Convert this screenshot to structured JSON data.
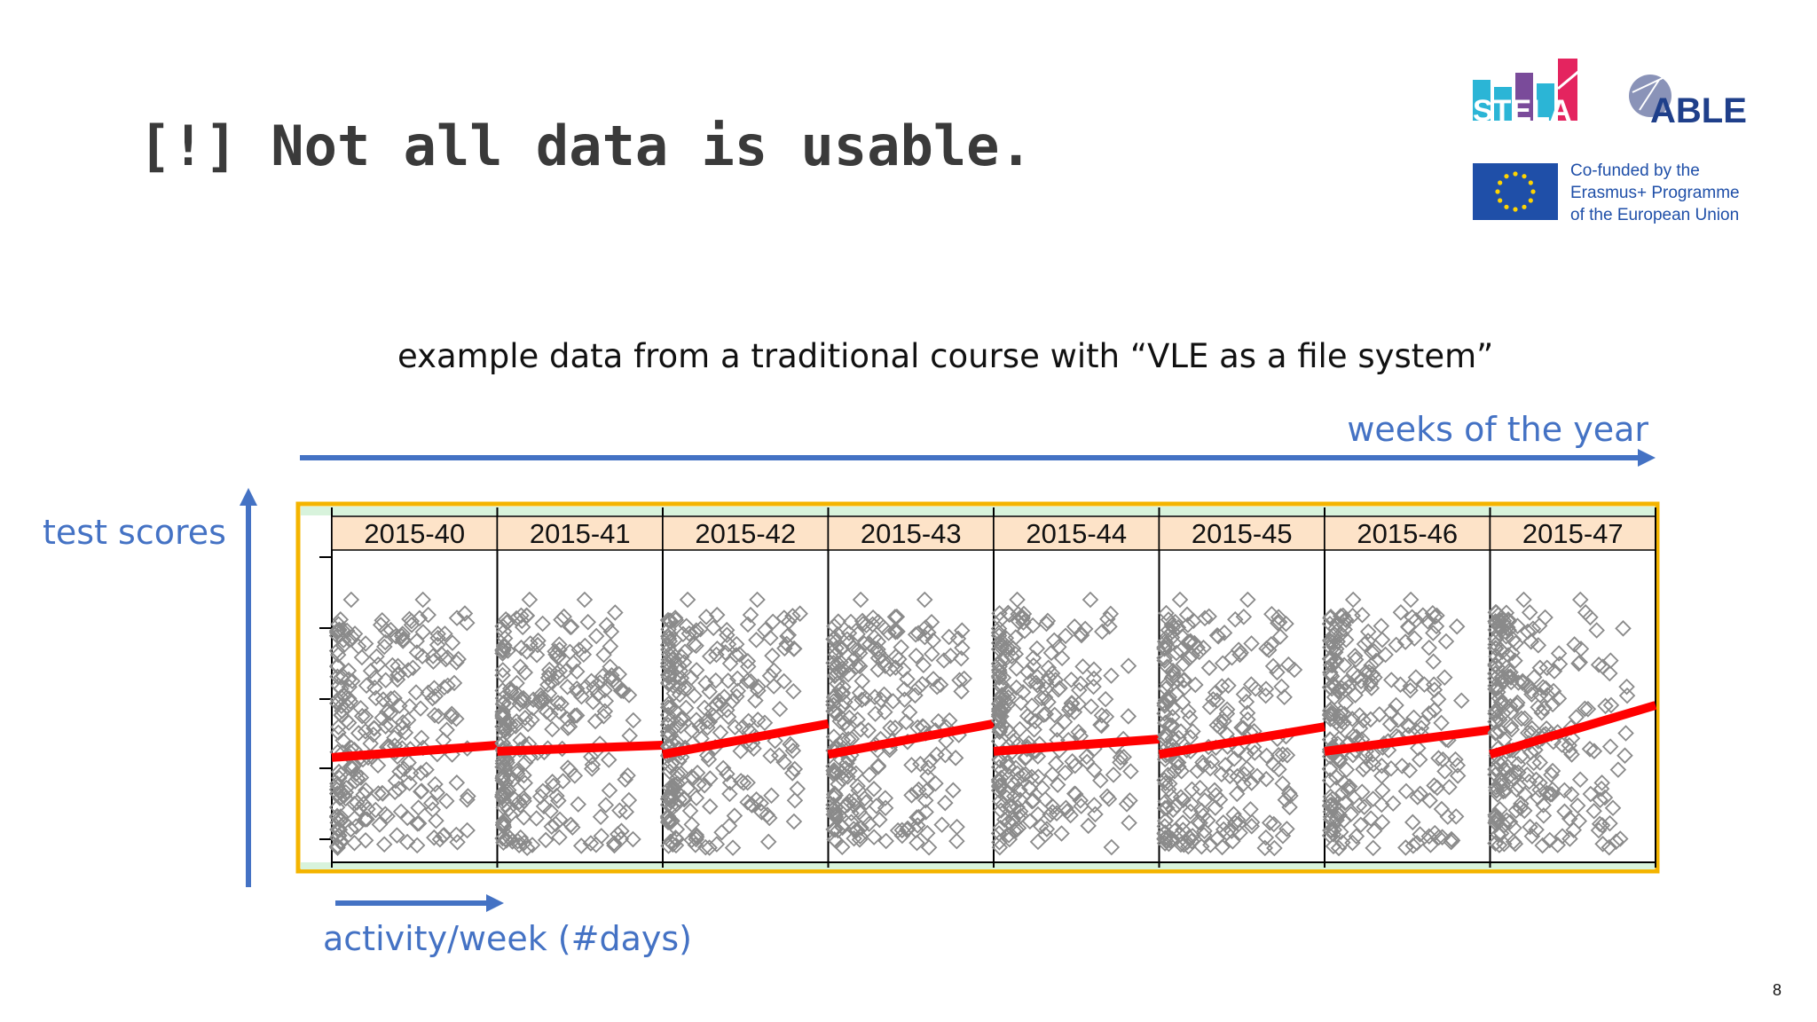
{
  "slide": {
    "title": "[!] Not all data is usable.",
    "subtitle": "example data from a traditional course with “VLE as a file system”",
    "weeks_label": "weeks of the year",
    "scores_label": "test scores",
    "activity_label": "activity/week (#days)",
    "page_number": "8"
  },
  "logos": {
    "stela": "STELA",
    "able": "ABLE",
    "eu_line1": "Co-funded by the",
    "eu_line2": "Erasmus+ Programme",
    "eu_line3": "of the European Union"
  },
  "colors": {
    "accent": "#4472c4",
    "frame": "#f4b400",
    "trend": "#ff0000",
    "points": "#8a8a8a",
    "header_fill": "#fde3c8",
    "strip_fill": "#d8f3dc"
  },
  "chart_data": {
    "type": "scatter",
    "panels": [
      "2015-40",
      "2015-41",
      "2015-42",
      "2015-43",
      "2015-44",
      "2015-45",
      "2015-46",
      "2015-47"
    ],
    "xlabel": "activity/week (#days)",
    "ylabel": "test scores",
    "trend_lines": [
      {
        "panel": "2015-40",
        "y_start": 0.33,
        "y_end": 0.37
      },
      {
        "panel": "2015-41",
        "y_start": 0.35,
        "y_end": 0.37
      },
      {
        "panel": "2015-42",
        "y_start": 0.34,
        "y_end": 0.44
      },
      {
        "panel": "2015-43",
        "y_start": 0.34,
        "y_end": 0.44
      },
      {
        "panel": "2015-44",
        "y_start": 0.35,
        "y_end": 0.39
      },
      {
        "panel": "2015-45",
        "y_start": 0.34,
        "y_end": 0.43
      },
      {
        "panel": "2015-46",
        "y_start": 0.35,
        "y_end": 0.42
      },
      {
        "panel": "2015-47",
        "y_start": 0.34,
        "y_end": 0.5
      }
    ],
    "grid": false
  }
}
